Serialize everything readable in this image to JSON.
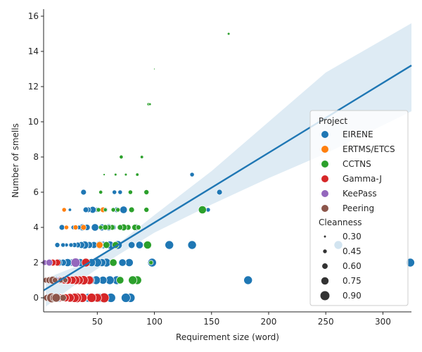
{
  "chart_data": {
    "type": "scatter",
    "xlabel": "Requirement size (word)",
    "ylabel": "Number of smells",
    "xlim": [
      3,
      325
    ],
    "ylim": [
      -0.8,
      16.4
    ],
    "xticks": [
      "50",
      "100",
      "150",
      "200",
      "250",
      "300"
    ],
    "xtick_values": [
      50,
      100,
      150,
      200,
      250,
      300
    ],
    "yticks": [
      "0",
      "2",
      "4",
      "6",
      "8",
      "10",
      "12",
      "14",
      "16"
    ],
    "ytick_values": [
      0,
      2,
      4,
      6,
      8,
      10,
      12,
      14,
      16
    ],
    "grid": false,
    "legend_position": "center-right",
    "hue_title": "Project",
    "size_title": "Cleanness",
    "size_legend": [
      "0.30",
      "0.45",
      "0.60",
      "0.75",
      "0.90"
    ],
    "size_legend_values": [
      0.3,
      0.45,
      0.6,
      0.75,
      0.9
    ],
    "regression": {
      "intercept": 0.3,
      "slope": 0.0397,
      "ci_band": [
        [
          5,
          -0.5,
          1.1
        ],
        [
          40,
          1.2,
          2.0
        ],
        [
          65,
          2.3,
          2.9
        ],
        [
          100,
          3.7,
          4.7
        ],
        [
          150,
          5.3,
          7.2
        ],
        [
          200,
          6.8,
          10.0
        ],
        [
          250,
          8.2,
          12.8
        ],
        [
          325,
          10.6,
          15.6
        ]
      ],
      "color": "#1f77b4"
    },
    "series": [
      {
        "name": "EIRENE",
        "color": "#1f77b4",
        "points": [
          [
            324,
            2,
            0.85
          ],
          [
            261,
            3,
            0.85
          ],
          [
            182,
            1,
            0.85
          ],
          [
            157,
            6,
            0.6
          ],
          [
            147,
            5,
            0.5
          ],
          [
            133,
            7,
            0.5
          ],
          [
            133,
            3,
            0.85
          ],
          [
            113,
            3,
            0.85
          ],
          [
            98,
            2,
            0.85
          ],
          [
            87,
            3,
            0.75
          ],
          [
            84,
            4,
            0.7
          ],
          [
            80,
            3,
            0.7
          ],
          [
            78,
            2,
            0.8
          ],
          [
            79,
            0,
            0.9
          ],
          [
            75,
            0,
            0.9
          ],
          [
            73,
            5,
            0.75
          ],
          [
            72,
            2,
            0.75
          ],
          [
            70,
            6,
            0.5
          ],
          [
            68,
            3,
            0.85
          ],
          [
            67,
            1,
            0.85
          ],
          [
            67,
            5,
            0.6
          ],
          [
            65,
            6,
            0.5
          ],
          [
            64,
            2,
            0.75
          ],
          [
            64,
            4,
            0.6
          ],
          [
            62,
            0,
            0.9
          ],
          [
            61,
            3,
            0.8
          ],
          [
            61,
            1,
            0.85
          ],
          [
            60,
            4,
            0.7
          ],
          [
            58,
            2,
            0.85
          ],
          [
            57,
            5,
            0.55
          ],
          [
            56,
            0,
            0.9
          ],
          [
            55,
            3,
            0.75
          ],
          [
            55,
            1,
            0.8
          ],
          [
            54,
            2,
            0.8
          ],
          [
            54,
            4,
            0.7
          ],
          [
            52,
            3,
            0.8
          ],
          [
            51,
            0,
            0.9
          ],
          [
            50,
            2,
            0.85
          ],
          [
            50,
            5,
            0.55
          ],
          [
            49,
            1,
            0.85
          ],
          [
            48,
            4,
            0.75
          ],
          [
            47,
            3,
            0.7
          ],
          [
            46,
            0,
            0.9
          ],
          [
            46,
            5,
            0.7
          ],
          [
            45,
            2,
            0.8
          ],
          [
            44,
            1,
            0.85
          ],
          [
            43,
            3,
            0.7
          ],
          [
            42,
            5,
            0.6
          ],
          [
            42,
            0,
            0.85
          ],
          [
            41,
            4,
            0.65
          ],
          [
            40,
            2,
            0.75
          ],
          [
            40,
            5,
            0.6
          ],
          [
            39,
            3,
            0.8
          ],
          [
            38,
            6,
            0.6
          ],
          [
            38,
            0,
            0.8
          ],
          [
            37,
            4,
            0.7
          ],
          [
            37,
            1,
            0.8
          ],
          [
            36,
            3,
            0.7
          ],
          [
            35,
            2,
            0.8
          ],
          [
            35,
            0,
            0.85
          ],
          [
            34,
            4,
            0.5
          ],
          [
            33,
            3,
            0.6
          ],
          [
            32,
            1,
            0.75
          ],
          [
            31,
            0,
            0.85
          ],
          [
            31,
            2,
            0.7
          ],
          [
            30,
            3,
            0.55
          ],
          [
            29,
            4,
            0.5
          ],
          [
            28,
            0,
            0.8
          ],
          [
            28,
            2,
            0.75
          ],
          [
            27,
            3,
            0.5
          ],
          [
            26,
            5,
            0.4
          ],
          [
            26,
            1,
            0.75
          ],
          [
            25,
            0,
            0.85
          ],
          [
            24,
            2,
            0.8
          ],
          [
            23,
            3,
            0.45
          ],
          [
            22,
            4,
            0.45
          ],
          [
            21,
            0,
            0.75
          ],
          [
            20,
            2,
            0.7
          ],
          [
            20,
            3,
            0.5
          ],
          [
            19,
            4,
            0.6
          ],
          [
            18,
            1,
            0.75
          ],
          [
            17,
            0,
            0.85
          ],
          [
            16,
            2,
            0.75
          ],
          [
            15,
            3,
            0.55
          ],
          [
            14,
            1,
            0.7
          ],
          [
            13,
            0,
            0.8
          ],
          [
            12,
            2,
            0.6
          ],
          [
            11,
            0,
            0.7
          ]
        ]
      },
      {
        "name": "ERTMS/ETCS",
        "color": "#ff7f0e",
        "points": [
          [
            21,
            5,
            0.5
          ],
          [
            23,
            4,
            0.5
          ],
          [
            31,
            4,
            0.55
          ],
          [
            38,
            4,
            0.6
          ],
          [
            55,
            5,
            0.6
          ],
          [
            52,
            3,
            0.7
          ]
        ]
      },
      {
        "name": "CCTNS",
        "color": "#2ca02c",
        "points": [
          [
            165,
            15,
            0.35
          ],
          [
            100,
            13,
            0.25
          ],
          [
            95,
            11,
            0.4
          ],
          [
            96,
            11,
            0.35
          ],
          [
            89,
            8,
            0.4
          ],
          [
            85,
            7,
            0.4
          ],
          [
            71,
            8,
            0.45
          ],
          [
            75,
            7,
            0.35
          ],
          [
            66,
            7,
            0.35
          ],
          [
            56,
            7,
            0.3
          ],
          [
            93,
            6,
            0.55
          ],
          [
            79,
            6,
            0.5
          ],
          [
            53,
            6,
            0.45
          ],
          [
            142,
            5,
            0.8
          ],
          [
            93,
            5,
            0.55
          ],
          [
            80,
            5,
            0.6
          ],
          [
            68,
            5,
            0.5
          ],
          [
            64,
            5,
            0.5
          ],
          [
            51,
            5,
            0.5
          ],
          [
            77,
            4,
            0.6
          ],
          [
            73,
            4,
            0.7
          ],
          [
            70,
            4,
            0.6
          ],
          [
            83,
            4,
            0.65
          ],
          [
            86,
            4,
            0.55
          ],
          [
            63,
            4,
            0.6
          ],
          [
            60,
            4,
            0.55
          ],
          [
            57,
            4,
            0.6
          ],
          [
            53,
            4,
            0.5
          ],
          [
            94,
            3,
            0.8
          ],
          [
            66,
            3,
            0.7
          ],
          [
            58,
            3,
            0.7
          ],
          [
            85,
            1,
            0.85
          ],
          [
            81,
            1,
            0.85
          ],
          [
            70,
            1,
            0.75
          ],
          [
            64,
            2,
            0.75
          ],
          [
            74,
            8,
            0.2
          ],
          [
            57,
            5,
            0.45
          ],
          [
            97,
            2,
            0.5
          ]
        ]
      },
      {
        "name": "Gamma-J",
        "color": "#d62728",
        "points": [
          [
            56,
            0,
            0.95
          ],
          [
            50,
            0,
            0.85
          ],
          [
            45,
            0,
            0.9
          ],
          [
            43,
            1,
            0.85
          ],
          [
            40,
            2,
            0.85
          ],
          [
            38,
            1,
            0.9
          ],
          [
            37,
            0,
            0.9
          ],
          [
            34,
            1,
            0.85
          ],
          [
            32,
            0,
            0.95
          ],
          [
            31,
            1,
            0.85
          ],
          [
            30,
            0,
            0.9
          ],
          [
            28,
            1,
            0.8
          ],
          [
            26,
            0,
            0.85
          ],
          [
            24,
            1,
            0.8
          ],
          [
            22,
            0,
            0.8
          ],
          [
            21,
            1,
            0.75
          ],
          [
            18,
            0,
            0.75
          ],
          [
            17,
            1,
            0.7
          ],
          [
            15,
            2,
            0.7
          ],
          [
            14,
            0,
            0.7
          ],
          [
            12,
            1,
            0.7
          ],
          [
            11,
            2,
            0.7
          ],
          [
            10,
            1,
            0.65
          ],
          [
            9,
            0,
            0.7
          ]
        ]
      },
      {
        "name": "KeePass",
        "color": "#9467bd",
        "points": [
          [
            4,
            2,
            0.6
          ],
          [
            8,
            2,
            0.7
          ],
          [
            12,
            1,
            0.6
          ],
          [
            16,
            1,
            0.6
          ],
          [
            31,
            2,
            0.9
          ],
          [
            6,
            1,
            0.5
          ]
        ]
      },
      {
        "name": "Peering",
        "color": "#8c564b",
        "points": [
          [
            5,
            1,
            0.6
          ],
          [
            6,
            0,
            0.7
          ],
          [
            8,
            1,
            0.7
          ],
          [
            9,
            0,
            0.8
          ],
          [
            10,
            0,
            0.95
          ],
          [
            11,
            1,
            0.8
          ],
          [
            12,
            0,
            0.75
          ],
          [
            13,
            1,
            0.6
          ],
          [
            15,
            0,
            0.7
          ],
          [
            17,
            0,
            0.6
          ],
          [
            18,
            1,
            0.6
          ],
          [
            20,
            0,
            0.7
          ],
          [
            22,
            1,
            0.55
          ],
          [
            14,
            0,
            0.85
          ]
        ]
      }
    ]
  },
  "legend": {
    "title": "Project",
    "size_title": "Cleanness"
  }
}
